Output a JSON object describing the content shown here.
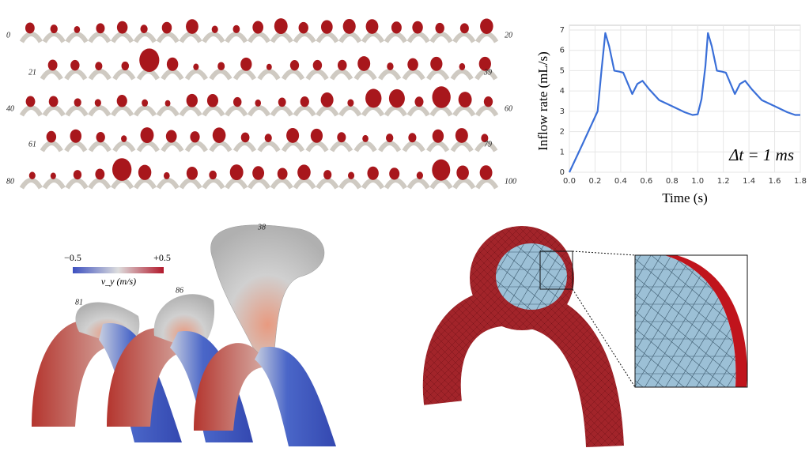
{
  "aneurysm_grid": {
    "rows": [
      {
        "first": 0,
        "last": 20
      },
      {
        "first": 21,
        "last": 39
      },
      {
        "first": 40,
        "last": 60
      },
      {
        "first": 61,
        "last": 79
      },
      {
        "first": 80,
        "last": 100
      }
    ]
  },
  "chart_data": {
    "type": "line",
    "xlabel": "Time (s)",
    "ylabel": "Inflow rate (mL/s)",
    "annotation": "Δt = 1 ms",
    "x": [
      0,
      0.1,
      0.22,
      0.25,
      0.28,
      0.31,
      0.35,
      0.39,
      0.42,
      0.46,
      0.49,
      0.53,
      0.57,
      0.62,
      0.7,
      0.8,
      0.9,
      0.96,
      1.0,
      1.03,
      1.06,
      1.08,
      1.11,
      1.15,
      1.19,
      1.22,
      1.26,
      1.29,
      1.33,
      1.37,
      1.42,
      1.5,
      1.6,
      1.7,
      1.76,
      1.8
    ],
    "series": [
      {
        "color": "#3a6fd8",
        "values": [
          0,
          1.35,
          3.0,
          5.0,
          6.85,
          6.2,
          5.0,
          4.95,
          4.9,
          4.3,
          3.85,
          4.35,
          4.5,
          4.1,
          3.55,
          3.25,
          2.95,
          2.82,
          2.85,
          3.6,
          5.2,
          6.85,
          6.2,
          5.0,
          4.95,
          4.9,
          4.3,
          3.85,
          4.35,
          4.5,
          4.1,
          3.55,
          3.25,
          2.95,
          2.82,
          2.82
        ]
      }
    ],
    "xlim": [
      0,
      1.8
    ],
    "ylim": [
      0,
      7
    ],
    "xticks": [
      {
        "value": 0,
        "label": "0.0"
      },
      0.2,
      0.4,
      0.6,
      0.8,
      {
        "value": 1,
        "label": "1.0"
      },
      1.2,
      1.4,
      1.6,
      1.8
    ],
    "yticks": [
      0,
      1,
      2,
      3,
      4,
      5,
      6,
      7
    ],
    "grid": true
  },
  "streamlines": {
    "colorbar": {
      "ticks": [
        {
          "value": -0.5,
          "label": "−0.5"
        },
        {
          "value": 0.5,
          "label": "+0.5"
        }
      ],
      "label": "v_y (m/s)"
    },
    "case_labels": [
      "81",
      "86",
      "38"
    ]
  }
}
